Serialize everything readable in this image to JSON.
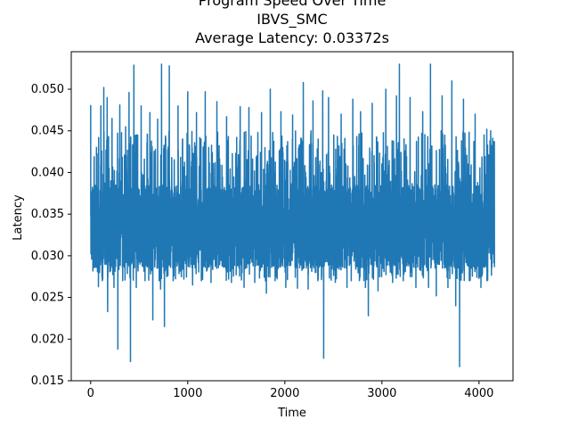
{
  "chart_data": {
    "type": "line",
    "title_lines": [
      "Program Speed Over Time",
      "IBVS_SMC",
      "Average Latency: 0.03372s"
    ],
    "xlabel": "Time",
    "ylabel": "Latency",
    "xlim": [
      -200,
      4350
    ],
    "ylim": [
      0.015,
      0.0545
    ],
    "x_ticks": [
      0,
      1000,
      2000,
      3000,
      4000
    ],
    "x_tick_labels": [
      "0",
      "1000",
      "2000",
      "3000",
      "4000"
    ],
    "y_ticks": [
      0.015,
      0.02,
      0.025,
      0.03,
      0.035,
      0.04,
      0.045,
      0.05
    ],
    "y_tick_labels": [
      "0.015",
      "0.020",
      "0.025",
      "0.030",
      "0.035",
      "0.040",
      "0.045",
      "0.050"
    ],
    "grid": false,
    "colors": {
      "series": "#1f77b4",
      "axes": "#000000",
      "background": "#ffffff"
    },
    "series": [
      {
        "n_points": 4160,
        "average": 0.03372,
        "base_range": [
          0.0285,
          0.0385
        ],
        "spikes": [
          [
            0,
            0.0481
          ],
          [
            35,
            0.04
          ],
          [
            60,
            0.043
          ],
          [
            80,
            0.0263
          ],
          [
            105,
            0.048
          ],
          [
            120,
            0.027
          ],
          [
            135,
            0.0502
          ],
          [
            170,
            0.049
          ],
          [
            175,
            0.0233
          ],
          [
            220,
            0.0465
          ],
          [
            240,
            0.0262
          ],
          [
            280,
            0.0188
          ],
          [
            300,
            0.0481
          ],
          [
            330,
            0.027
          ],
          [
            360,
            0.0455
          ],
          [
            395,
            0.0496
          ],
          [
            410,
            0.0173
          ],
          [
            445,
            0.0529
          ],
          [
            470,
            0.0262
          ],
          [
            520,
            0.048
          ],
          [
            560,
            0.027
          ],
          [
            610,
            0.0472
          ],
          [
            640,
            0.0223
          ],
          [
            690,
            0.0464
          ],
          [
            720,
            0.026
          ],
          [
            730,
            0.053
          ],
          [
            760,
            0.0215
          ],
          [
            810,
            0.0528
          ],
          [
            850,
            0.027
          ],
          [
            900,
            0.048
          ],
          [
            960,
            0.0272
          ],
          [
            1000,
            0.0497
          ],
          [
            1050,
            0.0265
          ],
          [
            1090,
            0.0472
          ],
          [
            1140,
            0.027
          ],
          [
            1180,
            0.0497
          ],
          [
            1240,
            0.0268
          ],
          [
            1300,
            0.0485
          ],
          [
            1400,
            0.0467
          ],
          [
            1450,
            0.0268
          ],
          [
            1540,
            0.0479
          ],
          [
            1580,
            0.0262
          ],
          [
            1630,
            0.0478
          ],
          [
            1690,
            0.0268
          ],
          [
            1760,
            0.0472
          ],
          [
            1810,
            0.0255
          ],
          [
            1850,
            0.05
          ],
          [
            1900,
            0.027
          ],
          [
            1960,
            0.0473
          ],
          [
            2010,
            0.0262
          ],
          [
            2080,
            0.0469
          ],
          [
            2130,
            0.0261
          ],
          [
            2190,
            0.0508
          ],
          [
            2240,
            0.026
          ],
          [
            2290,
            0.0486
          ],
          [
            2340,
            0.027
          ],
          [
            2390,
            0.0498
          ],
          [
            2400,
            0.0177
          ],
          [
            2450,
            0.049
          ],
          [
            2520,
            0.0268
          ],
          [
            2580,
            0.047
          ],
          [
            2640,
            0.0262
          ],
          [
            2700,
            0.0488
          ],
          [
            2780,
            0.0473
          ],
          [
            2830,
            0.0262
          ],
          [
            2860,
            0.0228
          ],
          [
            2900,
            0.0483
          ],
          [
            2960,
            0.0258
          ],
          [
            3040,
            0.05
          ],
          [
            3110,
            0.0268
          ],
          [
            3150,
            0.0492
          ],
          [
            3180,
            0.053
          ],
          [
            3220,
            0.027
          ],
          [
            3290,
            0.049
          ],
          [
            3350,
            0.0262
          ],
          [
            3420,
            0.0473
          ],
          [
            3480,
            0.0262
          ],
          [
            3500,
            0.053
          ],
          [
            3560,
            0.0252
          ],
          [
            3620,
            0.0492
          ],
          [
            3680,
            0.0262
          ],
          [
            3720,
            0.051
          ],
          [
            3760,
            0.024
          ],
          [
            3800,
            0.0167
          ],
          [
            3840,
            0.0488
          ],
          [
            3900,
            0.027
          ],
          [
            3960,
            0.047
          ],
          [
            4020,
            0.0262
          ],
          [
            4080,
            0.0452
          ],
          [
            4120,
            0.045
          ],
          [
            4150,
            0.0437
          ]
        ]
      }
    ]
  }
}
